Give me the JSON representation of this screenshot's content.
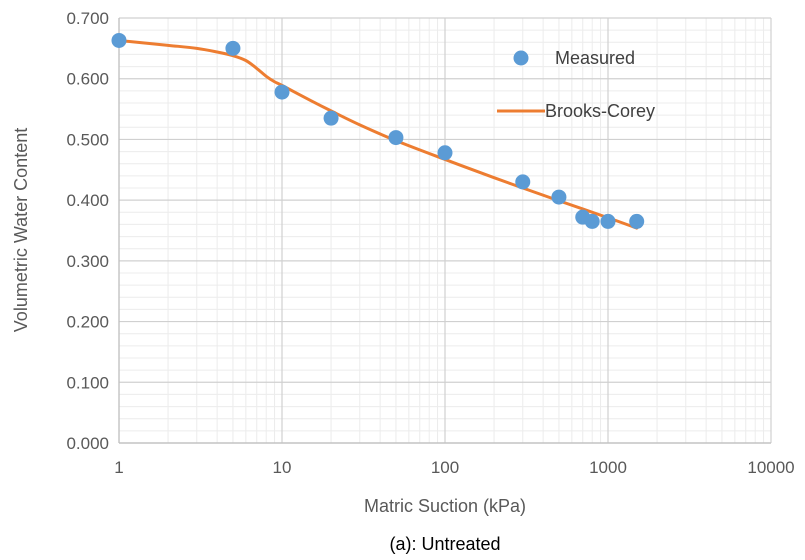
{
  "chart_data": {
    "type": "scatter",
    "caption": "(a): Untreated",
    "xlabel": "Matric Suction (kPa)",
    "ylabel": "Volumetric Water Content",
    "x_scale": "log",
    "xlim": [
      1,
      10000
    ],
    "ylim": [
      0,
      0.7
    ],
    "x_ticks": [
      1,
      10,
      100,
      1000,
      10000
    ],
    "x_tick_labels": [
      "1",
      "10",
      "100",
      "1000",
      "10000"
    ],
    "y_ticks": [
      0,
      0.1,
      0.2,
      0.3,
      0.4,
      0.5,
      0.6,
      0.7
    ],
    "y_tick_labels": [
      "0.000",
      "0.100",
      "0.200",
      "0.300",
      "0.400",
      "0.500",
      "0.600",
      "0.700"
    ],
    "grid": true,
    "legend_position": "top-right",
    "series": [
      {
        "name": "Measured",
        "kind": "scatter",
        "color": "#5B9BD5",
        "x": [
          1,
          5,
          10,
          20,
          50,
          100,
          300,
          500,
          700,
          800,
          1000,
          1500
        ],
        "y": [
          0.663,
          0.65,
          0.578,
          0.535,
          0.503,
          0.478,
          0.43,
          0.405,
          0.372,
          0.365,
          0.365,
          0.365
        ]
      },
      {
        "name": "Brooks-Corey",
        "kind": "line",
        "color": "#ED7D31",
        "x": [
          1,
          2,
          3,
          4,
          5,
          6,
          7,
          8,
          9,
          10,
          15,
          20,
          30,
          50,
          100,
          200,
          300,
          500,
          1000,
          1500
        ],
        "y": [
          0.663,
          0.655,
          0.65,
          0.644,
          0.638,
          0.63,
          0.617,
          0.604,
          0.595,
          0.589,
          0.564,
          0.547,
          0.524,
          0.498,
          0.467,
          0.437,
          0.42,
          0.399,
          0.371,
          0.354
        ]
      }
    ]
  }
}
